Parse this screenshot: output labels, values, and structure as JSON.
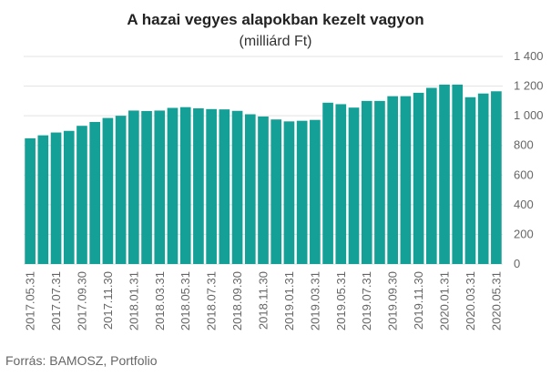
{
  "chart_data": {
    "type": "bar",
    "title": "A hazai vegyes alapokban kezelt vagyon",
    "subtitle": "(milliárd Ft)",
    "xlabel": "",
    "ylabel": "",
    "ylim": [
      0,
      1400
    ],
    "yticks": [
      0,
      200,
      400,
      600,
      800,
      1000,
      1200,
      1400
    ],
    "ytick_labels": [
      "0",
      "200",
      "400",
      "600",
      "800",
      "1 000",
      "1 200",
      "1 400"
    ],
    "grid": true,
    "legend": "none",
    "bar_color": "#14a096",
    "categories": [
      "2017.05.31",
      "2017.06.30",
      "2017.07.31",
      "2017.08.31",
      "2017.09.30",
      "2017.10.31",
      "2017.11.30",
      "2017.12.31",
      "2018.01.31",
      "2018.02.28",
      "2018.03.31",
      "2018.04.30",
      "2018.05.31",
      "2018.06.30",
      "2018.07.31",
      "2018.08.31",
      "2018.09.30",
      "2018.10.31",
      "2018.11.30",
      "2018.12.31",
      "2019.01.31",
      "2019.02.28",
      "2019.03.31",
      "2019.04.30",
      "2019.05.31",
      "2019.06.30",
      "2019.07.31",
      "2019.08.31",
      "2019.09.30",
      "2019.10.31",
      "2019.11.30",
      "2019.12.31",
      "2020.01.31",
      "2020.02.29",
      "2020.03.31",
      "2020.04.30",
      "2020.05.31"
    ],
    "tick_categories": [
      "2017.05.31",
      "2017.07.31",
      "2017.09.30",
      "2017.11.30",
      "2018.01.31",
      "2018.03.31",
      "2018.05.31",
      "2018.07.31",
      "2018.09.30",
      "2018.11.30",
      "2019.01.31",
      "2019.03.31",
      "2019.05.31",
      "2019.07.31",
      "2019.09.30",
      "2019.11.30",
      "2020.01.31",
      "2020.03.31",
      "2020.05.31"
    ],
    "values": [
      848,
      868,
      887,
      898,
      932,
      958,
      985,
      1000,
      1035,
      1032,
      1035,
      1053,
      1058,
      1050,
      1045,
      1043,
      1033,
      1010,
      995,
      975,
      962,
      966,
      972,
      1088,
      1078,
      1055,
      1100,
      1100,
      1132,
      1132,
      1155,
      1188,
      1210,
      1210,
      1125,
      1150,
      1165
    ]
  },
  "source": "Forrás: BAMOSZ, Portfolio"
}
